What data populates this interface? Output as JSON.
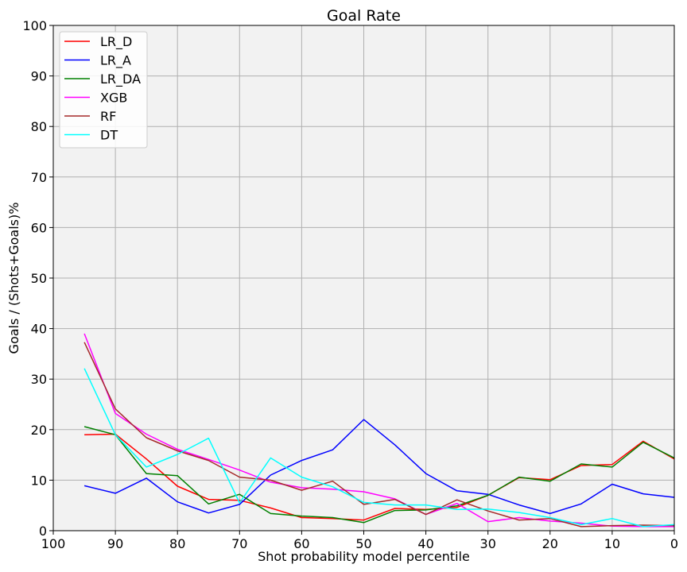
{
  "chart_data": {
    "type": "line",
    "title": "Goal Rate",
    "xlabel": "Shot probability model percentile",
    "ylabel": "Goals / (Shots+Goals)%",
    "xlim": [
      100,
      0
    ],
    "ylim": [
      0,
      100
    ],
    "x_ticks": [
      100,
      90,
      80,
      70,
      60,
      50,
      40,
      30,
      20,
      10,
      0
    ],
    "y_ticks": [
      0,
      10,
      20,
      30,
      40,
      50,
      60,
      70,
      80,
      90,
      100
    ],
    "grid": true,
    "legend_position": "top-left",
    "background_color": "#f2f2f2",
    "x": [
      95,
      90,
      85,
      80,
      75,
      70,
      65,
      60,
      55,
      50,
      45,
      40,
      35,
      30,
      25,
      20,
      15,
      10,
      5,
      0
    ],
    "series": [
      {
        "name": "LR_D",
        "color": "#ff0000",
        "values": [
          19.0,
          19.1,
          14.2,
          8.8,
          6.2,
          6.0,
          4.5,
          2.6,
          2.4,
          2.1,
          4.4,
          4.2,
          4.6,
          7.0,
          10.5,
          10.1,
          12.9,
          13.1,
          17.7,
          14.2
        ]
      },
      {
        "name": "LR_A",
        "color": "#0000ff",
        "values": [
          8.9,
          7.4,
          10.4,
          5.7,
          3.5,
          5.2,
          11.0,
          13.9,
          16.0,
          22.0,
          17.0,
          11.3,
          7.9,
          7.2,
          5.1,
          3.4,
          5.3,
          9.2,
          7.3,
          6.6
        ]
      },
      {
        "name": "LR_DA",
        "color": "#008000",
        "values": [
          20.6,
          19.0,
          11.3,
          10.9,
          5.3,
          7.2,
          3.4,
          2.9,
          2.6,
          1.6,
          4.0,
          4.1,
          4.9,
          7.0,
          10.6,
          9.8,
          13.2,
          12.6,
          17.5,
          14.4
        ]
      },
      {
        "name": "XGB",
        "color": "#ff00ff",
        "values": [
          39.0,
          23.2,
          19.1,
          16.1,
          14.1,
          12.0,
          9.6,
          8.5,
          8.2,
          7.7,
          6.3,
          3.2,
          5.4,
          1.8,
          2.6,
          1.9,
          1.5,
          0.9,
          0.8,
          0.8
        ]
      },
      {
        "name": "RF",
        "color": "#a52a2a",
        "values": [
          37.3,
          24.1,
          18.4,
          15.8,
          13.9,
          10.6,
          10.0,
          8.0,
          9.8,
          5.2,
          6.2,
          3.2,
          6.1,
          3.9,
          2.1,
          2.4,
          0.8,
          1.0,
          1.1,
          1.0
        ]
      },
      {
        "name": "DT",
        "color": "#00ffff",
        "values": [
          32.1,
          19.0,
          12.6,
          15.1,
          18.3,
          5.5,
          14.4,
          10.6,
          8.7,
          5.6,
          5.1,
          5.1,
          4.2,
          4.3,
          3.6,
          2.6,
          1.2,
          2.4,
          0.8,
          1.2
        ]
      }
    ]
  }
}
